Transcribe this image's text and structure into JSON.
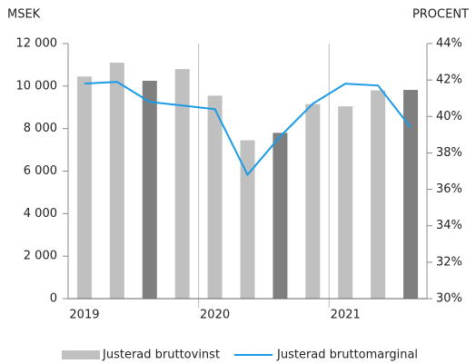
{
  "chart_data": {
    "type": "bar_line",
    "y_label": "MSEK",
    "y2_label": "PROCENT",
    "categories": [
      "2019",
      null,
      null,
      null,
      "2020",
      null,
      null,
      null,
      "2021",
      null,
      null
    ],
    "series": [
      {
        "name": "Justerad bruttovinst",
        "type": "bar",
        "color": "#c0c0c0",
        "colors": [
          "#c0c0c0",
          "#c0c0c0",
          "#7f7f7f",
          "#c0c0c0",
          "#c0c0c0",
          "#c0c0c0",
          "#7f7f7f",
          "#c0c0c0",
          "#c0c0c0",
          "#c0c0c0",
          "#7f7f7f"
        ],
        "values": [
          10450,
          11100,
          10250,
          10800,
          9550,
          7450,
          7800,
          9150,
          9050,
          9800,
          9820
        ]
      },
      {
        "name": "Justerad bruttomarginal",
        "type": "line",
        "axis": "y2",
        "color": "#1a9be6",
        "values": [
          41.8,
          41.9,
          40.8,
          40.6,
          40.4,
          36.8,
          38.9,
          40.7,
          41.8,
          41.7,
          39.4
        ]
      }
    ],
    "ylim": [
      0,
      12000
    ],
    "yticks": [
      0,
      {
        "value": 2000,
        "label": "2 000"
      },
      {
        "value": 4000,
        "label": "4 000"
      },
      {
        "value": 6000,
        "label": "6 000"
      },
      {
        "value": 8000,
        "label": "8 000"
      },
      {
        "value": 10000,
        "label": "10 000"
      },
      {
        "value": 12000,
        "label": "12 000"
      }
    ],
    "y2lim": [
      30,
      44
    ],
    "y2ticks": [
      {
        "value": 30,
        "label": "30%"
      },
      {
        "value": 32,
        "label": "32%"
      },
      {
        "value": 34,
        "label": "34%"
      },
      {
        "value": 36,
        "label": "36%"
      },
      {
        "value": 38,
        "label": "38%"
      },
      {
        "value": 40,
        "label": "40%"
      },
      {
        "value": 42,
        "label": "42%"
      },
      {
        "value": 44,
        "label": "44%"
      }
    ],
    "legend": "bottom"
  }
}
